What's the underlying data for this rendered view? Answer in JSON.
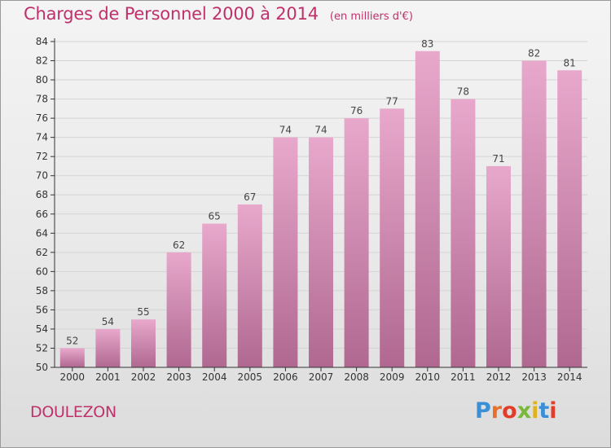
{
  "header": {
    "title": "Charges de Personnel 2000 à 2014",
    "subtitle": "(en milliers d'€)"
  },
  "footer": {
    "place": "DOULEZON",
    "logo_text": "Proxiti",
    "logo_colors": [
      "#3a8fd6",
      "#e8702a",
      "#e23d2a",
      "#7ab83a",
      "#e0b21b",
      "#3a8fd6",
      "#e23d2a"
    ]
  },
  "colors": {
    "title": "#c0306a",
    "bar_top": "#e8a8cc",
    "bar_bottom": "#b06890",
    "grid": "#d4d4d4"
  },
  "chart_data": {
    "type": "bar",
    "title": "Charges de Personnel 2000 à 2014",
    "subtitle": "(en milliers d'€)",
    "xlabel": "",
    "ylabel": "",
    "categories": [
      "2000",
      "2001",
      "2002",
      "2003",
      "2004",
      "2005",
      "2006",
      "2007",
      "2008",
      "2009",
      "2010",
      "2011",
      "2012",
      "2013",
      "2014"
    ],
    "values": [
      52,
      54,
      55,
      62,
      65,
      67,
      74,
      74,
      76,
      77,
      83,
      78,
      71,
      82,
      81
    ],
    "ylim": [
      50,
      84
    ],
    "yticks": [
      50,
      52,
      54,
      56,
      58,
      60,
      62,
      64,
      66,
      68,
      70,
      72,
      74,
      76,
      78,
      80,
      82,
      84
    ],
    "data_labels": true,
    "grid": true,
    "legend": "none"
  }
}
